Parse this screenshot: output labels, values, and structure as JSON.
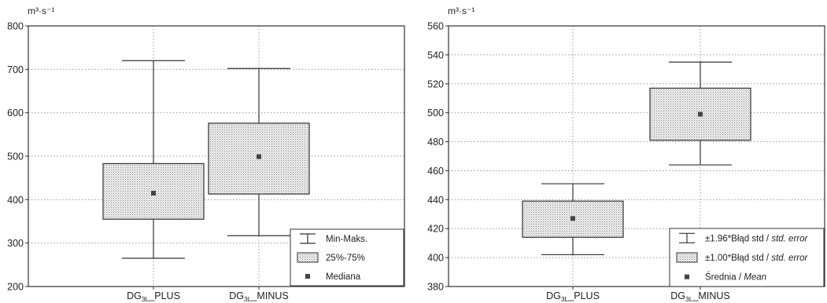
{
  "chart_data": [
    {
      "type": "box",
      "unit_label": "m³·s⁻¹",
      "categories": [
        {
          "main": "DG",
          "sub": "3L",
          "suffix": "_PLUS"
        },
        {
          "main": "DG",
          "sub": "3L",
          "suffix": "_MINUS"
        }
      ],
      "boxes": [
        {
          "whisker_low": 265,
          "q1": 355,
          "median": 415,
          "q3": 483,
          "whisker_high": 720
        },
        {
          "whisker_low": 317,
          "q1": 413,
          "median": 499,
          "q3": 576,
          "whisker_high": 702
        }
      ],
      "ylim": [
        200,
        800
      ],
      "yticks": [
        200,
        300,
        400,
        500,
        600,
        700,
        800
      ],
      "grid": true,
      "legend_position": "bottom-right",
      "legend": [
        {
          "kind": "whisker",
          "text": "Min-Maks.",
          "italic": ""
        },
        {
          "kind": "box",
          "text": "25%-75%",
          "italic": ""
        },
        {
          "kind": "point",
          "text": "Mediana",
          "italic": ""
        }
      ]
    },
    {
      "type": "box",
      "unit_label": "m³·s⁻¹",
      "categories": [
        {
          "main": "DG",
          "sub": "3L",
          "suffix": "_PLUS"
        },
        {
          "main": "DG",
          "sub": "3L",
          "suffix": "_MINUS"
        }
      ],
      "boxes": [
        {
          "whisker_low": 402,
          "q1": 414,
          "median": 427,
          "q3": 439,
          "whisker_high": 451
        },
        {
          "whisker_low": 464,
          "q1": 481,
          "median": 499,
          "q3": 517,
          "whisker_high": 535
        }
      ],
      "ylim": [
        380,
        560
      ],
      "yticks": [
        380,
        400,
        420,
        440,
        460,
        480,
        500,
        520,
        540,
        560
      ],
      "grid": true,
      "legend_position": "bottom-right",
      "legend": [
        {
          "kind": "whisker",
          "text": "±1.96*Błąd std / ",
          "italic": "std. error"
        },
        {
          "kind": "box",
          "text": "±1.00*Błąd std / ",
          "italic": "std. error"
        },
        {
          "kind": "point",
          "text": "Średnia / ",
          "italic": "Mean"
        }
      ]
    }
  ],
  "colors": {
    "box_fill": "#dcdcdc",
    "line": "#333333",
    "grid": "#9a9a9a",
    "marker": "#444444"
  }
}
